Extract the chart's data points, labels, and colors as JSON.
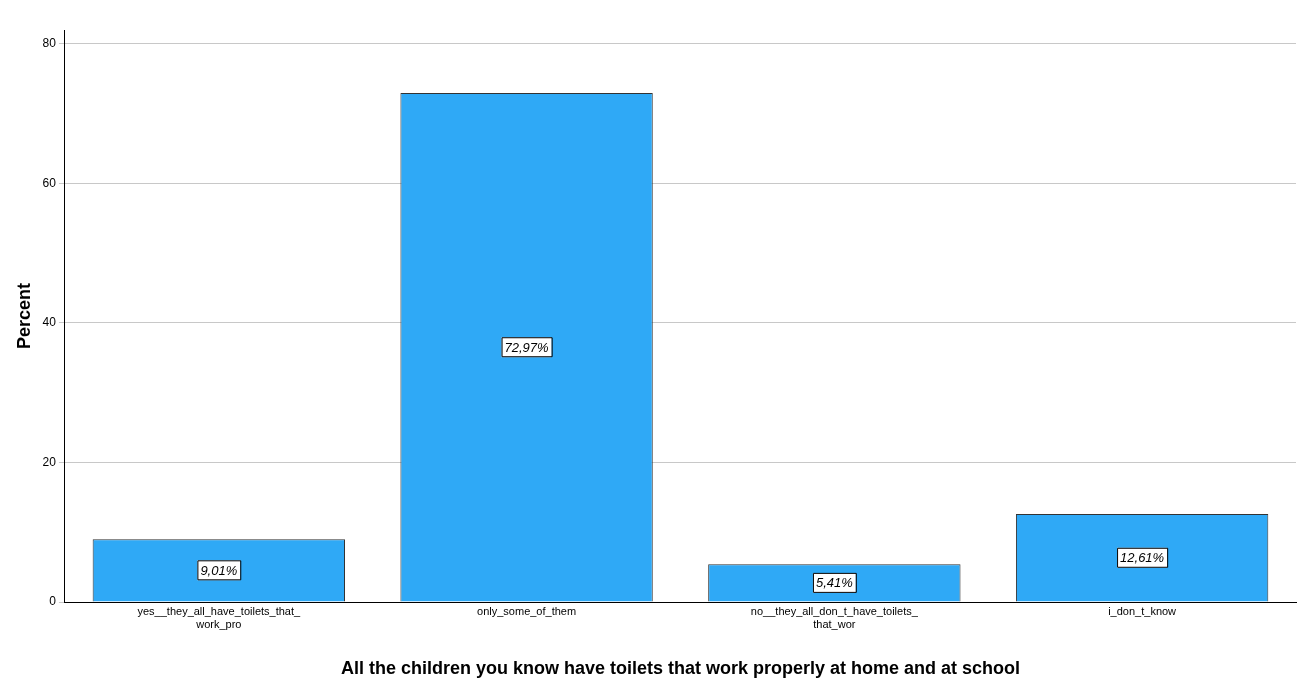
{
  "chart_data": {
    "type": "bar",
    "xlabel": "All the children you know have toilets that work properly at home and at school",
    "ylabel": "Percent",
    "categories": [
      "yes__they_all_have_toilets_that_work_pro",
      "only_some_of_them",
      "no__they_all_don_t_have_toilets_that_wor",
      "i_don_t_know"
    ],
    "values": [
      9.01,
      72.97,
      5.41,
      12.61
    ],
    "value_labels": [
      "9,01%",
      "72,97%",
      "5,41%",
      "12,61%"
    ],
    "color": "#2fa9f6",
    "ylim": [
      0,
      82
    ],
    "yticks": [
      0,
      20,
      40,
      60,
      80
    ],
    "grid": "y"
  }
}
